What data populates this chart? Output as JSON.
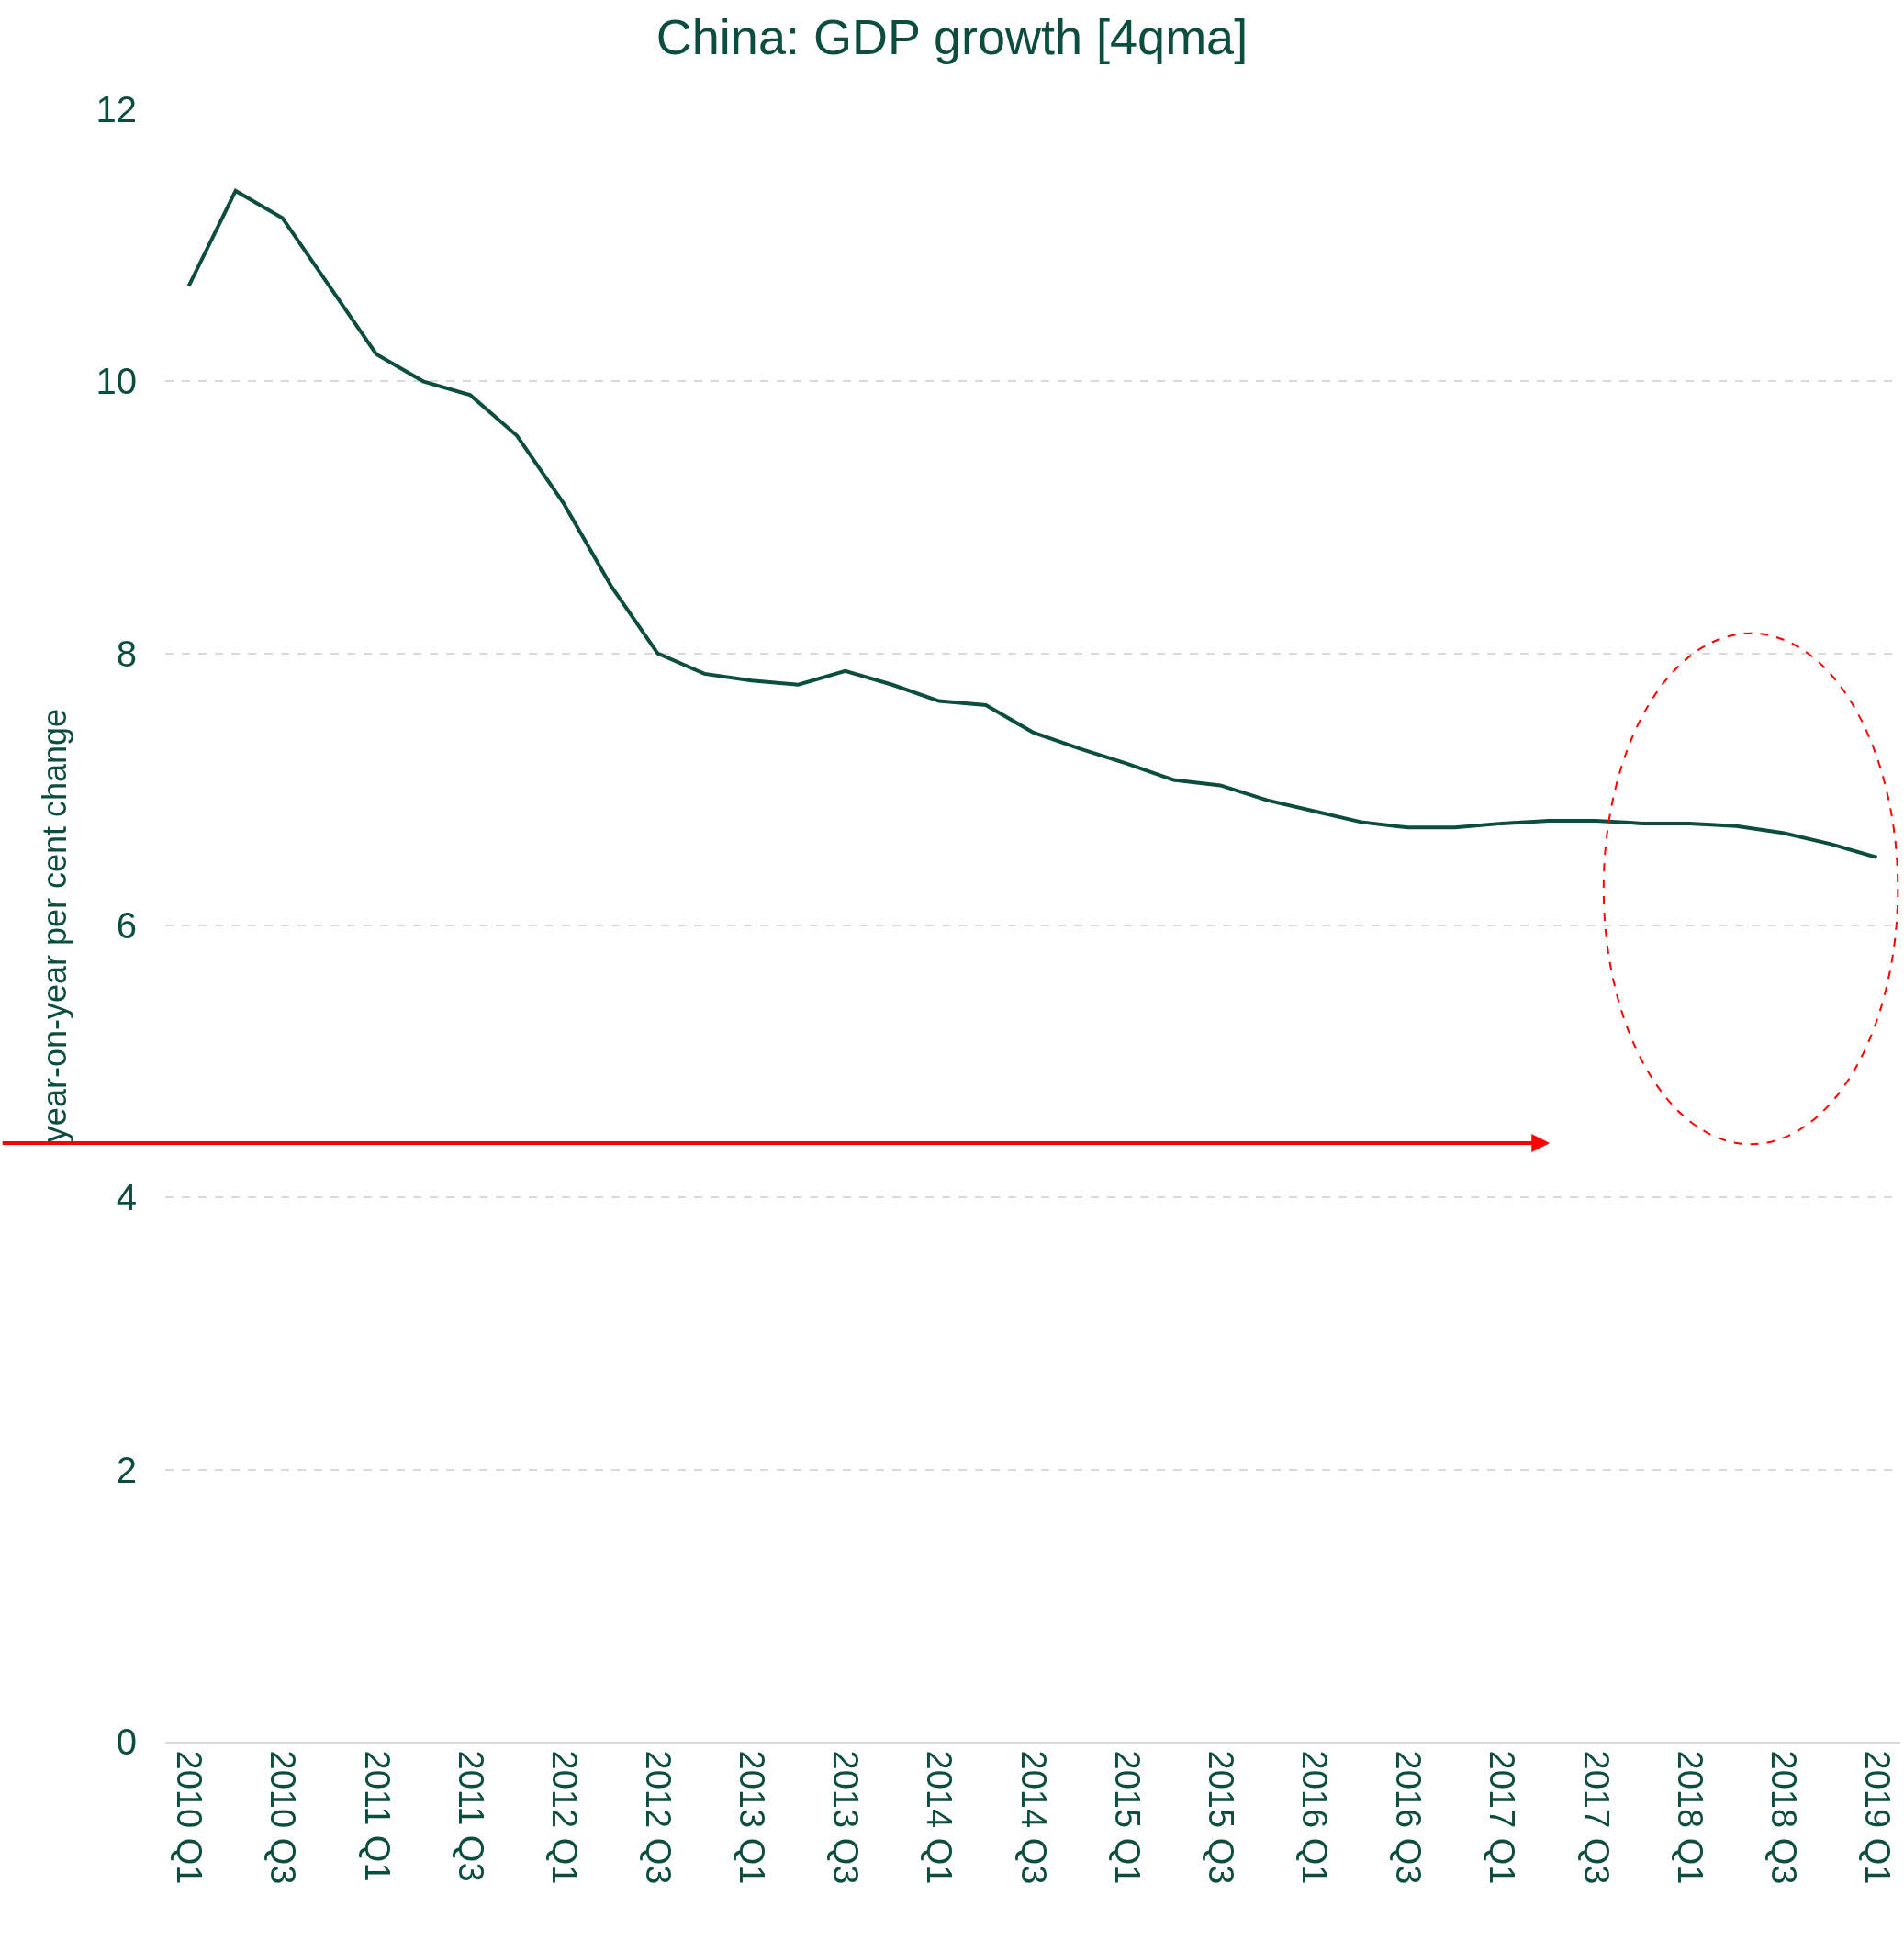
{
  "chart_data": {
    "type": "line",
    "title": "China: GDP growth [4qma]",
    "ylabel": "year-on-year per cent change",
    "categories": [
      "2010 Q1",
      null,
      "2010 Q3",
      null,
      "2011 Q1",
      null,
      "2011 Q3",
      null,
      "2012 Q1",
      null,
      "2012 Q3",
      null,
      "2013 Q1",
      null,
      "2013 Q3",
      null,
      "2014 Q1",
      null,
      "2014 Q3",
      null,
      "2015 Q1",
      null,
      "2015 Q3",
      null,
      "2016 Q1",
      null,
      "2016 Q3",
      null,
      "2017 Q1",
      null,
      "2017 Q3",
      null,
      "2018 Q1",
      null,
      "2018 Q3",
      null,
      "2019 Q1"
    ],
    "series": [
      {
        "color": "#0b4d3f",
        "values": [
          10.7,
          11.4,
          11.2,
          10.7,
          10.2,
          10.0,
          9.9,
          9.6,
          9.1,
          8.5,
          8.0,
          7.85,
          7.8,
          7.77,
          7.87,
          7.77,
          7.65,
          7.62,
          7.42,
          7.3,
          7.19,
          7.07,
          7.03,
          6.92,
          6.84,
          6.76,
          6.72,
          6.72,
          6.75,
          6.77,
          6.77,
          6.75,
          6.75,
          6.73,
          6.68,
          6.6,
          6.5
        ]
      }
    ],
    "ref_lines": [
      {
        "axis": "y",
        "value": 4.4,
        "color": "#ff0000"
      }
    ],
    "ylim": [
      0,
      12
    ],
    "yticks": [
      0,
      2,
      4,
      6,
      8,
      10,
      12
    ],
    "grid": "y",
    "marker": "none",
    "line_style": "solid"
  }
}
